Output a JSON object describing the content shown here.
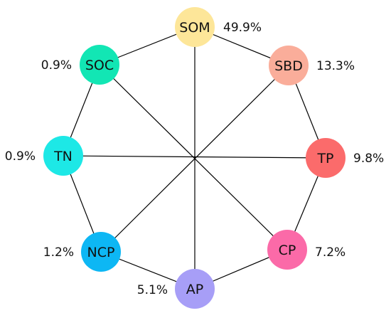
{
  "nodes": [
    {
      "id": "SOM",
      "label": "SOM",
      "value": "49.9%",
      "color": "#fde699"
    },
    {
      "id": "SBD",
      "label": "SBD",
      "value": "13.3%",
      "color": "#faad9a"
    },
    {
      "id": "TP",
      "label": "TP",
      "value": "9.8%",
      "color": "#fb6b6b"
    },
    {
      "id": "CP",
      "label": "CP",
      "value": "7.2%",
      "color": "#fb6aa8"
    },
    {
      "id": "AP",
      "label": "AP",
      "value": "5.1%",
      "color": "#a79ef7"
    },
    {
      "id": "NCP",
      "label": "NCP",
      "value": "1.2%",
      "color": "#0db7f4"
    },
    {
      "id": "TN",
      "label": "TN",
      "value": "0.9%",
      "color": "#1de8e6"
    },
    {
      "id": "SOC",
      "label": "SOC",
      "value": "0.9%",
      "color": "#12e6b4"
    }
  ],
  "edges": {
    "ring": true,
    "spokes": [
      [
        "SOM",
        "AP"
      ],
      [
        "SBD",
        "NCP"
      ],
      [
        "TP",
        "TN"
      ],
      [
        "CP",
        "SOC"
      ]
    ]
  }
}
